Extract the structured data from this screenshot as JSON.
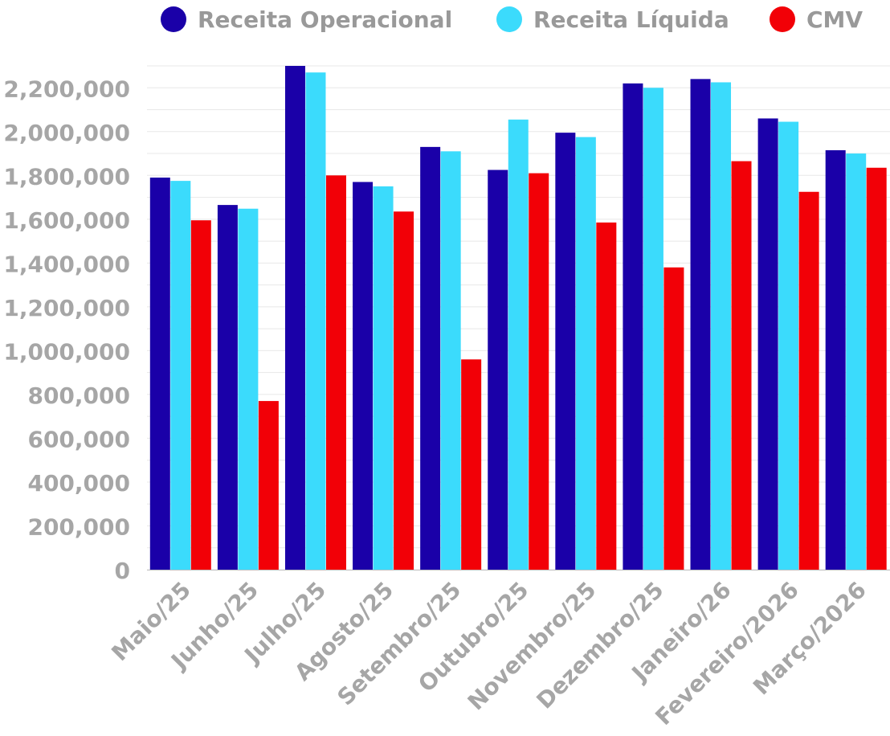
{
  "chart_data": {
    "type": "bar",
    "title": "",
    "xlabel": "",
    "ylabel": "",
    "ylim": [
      0,
      2300000
    ],
    "grid": true,
    "legend_position": "top",
    "categories": [
      "Maio/25",
      "Junho/25",
      "Julho/25",
      "Agosto/25",
      "Setembro/25",
      "Outubro/25",
      "Novembro/25",
      "Dezembro/25",
      "Janeiro/26",
      "Fevereiro/2026",
      "Março/2026"
    ],
    "series": [
      {
        "name": "Receita Operacional",
        "color": "#1A00A8",
        "values": [
          1790000,
          1665000,
          2300000,
          1770000,
          1930000,
          1825000,
          1995000,
          2220000,
          2240000,
          2060000,
          1915000
        ]
      },
      {
        "name": "Receita Líquida",
        "color": "#3BDBFC",
        "values": [
          1775000,
          1648000,
          2270000,
          1750000,
          1910000,
          2055000,
          1975000,
          2200000,
          2225000,
          2045000,
          1900000
        ]
      },
      {
        "name": "CMV",
        "color": "#F20007",
        "values": [
          1595000,
          770000,
          1800000,
          1635000,
          960000,
          1810000,
          1585000,
          1380000,
          1865000,
          1725000,
          1835000
        ]
      }
    ],
    "yticks": [
      {
        "value": 0,
        "label": "0"
      },
      {
        "value": 200000,
        "label": "200,000"
      },
      {
        "value": 400000,
        "label": "400,000"
      },
      {
        "value": 600000,
        "label": "600,000"
      },
      {
        "value": 800000,
        "label": "800,000"
      },
      {
        "value": 1000000,
        "label": "1,000,000"
      },
      {
        "value": 1200000,
        "label": "1,200,000"
      },
      {
        "value": 1400000,
        "label": "1,400,000"
      },
      {
        "value": 1600000,
        "label": "1,600,000"
      },
      {
        "value": 1800000,
        "label": "1,800,000"
      },
      {
        "value": 2000000,
        "label": "2,000,000"
      },
      {
        "value": 2200000,
        "label": "2,200,000"
      }
    ],
    "colors": {
      "label_text": "#A6A6A6",
      "legend_text": "#999999",
      "gridline": "#E8E8E8",
      "axis": "#BFBFBF"
    }
  }
}
